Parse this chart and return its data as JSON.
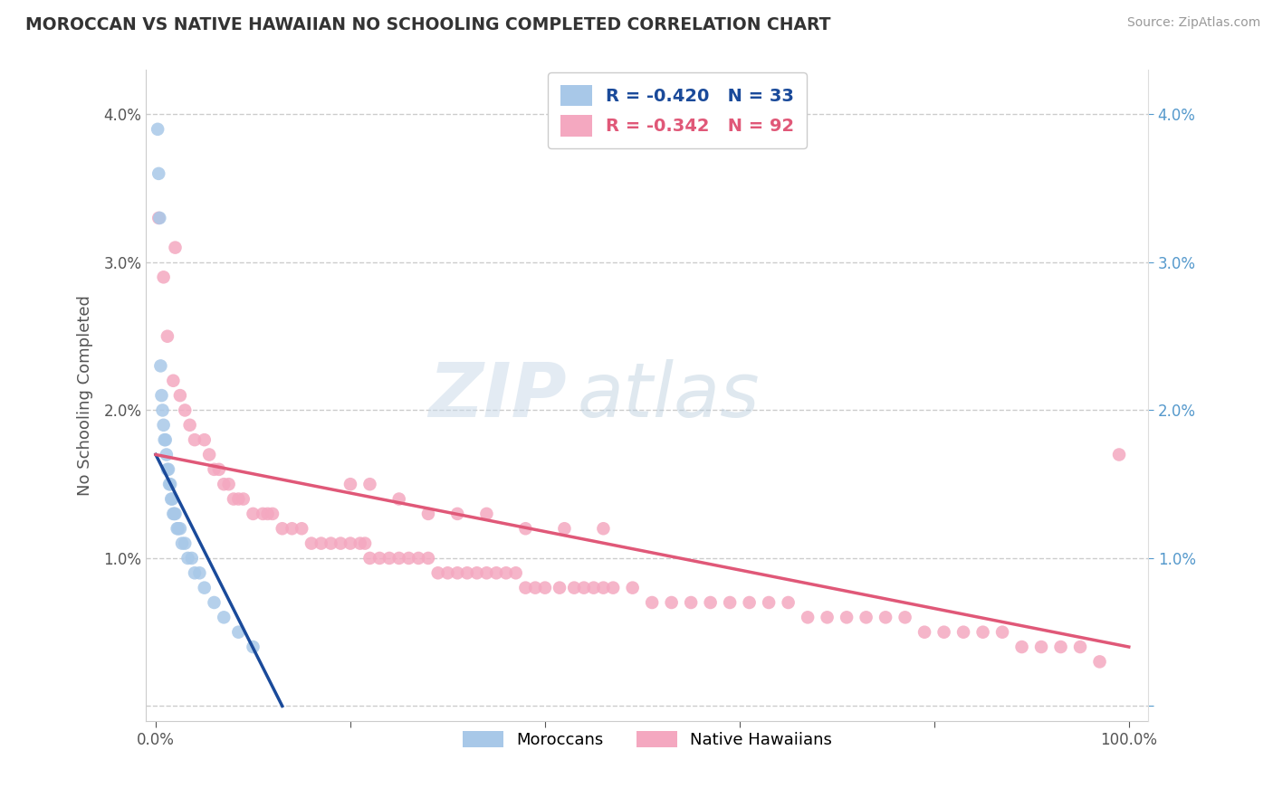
{
  "title": "MOROCCAN VS NATIVE HAWAIIAN NO SCHOOLING COMPLETED CORRELATION CHART",
  "source": "Source: ZipAtlas.com",
  "ylabel": "No Schooling Completed",
  "x_tick_positions": [
    0.0,
    0.2,
    0.4,
    0.6,
    0.8,
    1.0
  ],
  "x_tick_labels": [
    "0.0%",
    "",
    "",
    "",
    "",
    "100.0%"
  ],
  "y_tick_positions": [
    0.0,
    0.01,
    0.02,
    0.03,
    0.04
  ],
  "y_tick_labels_left": [
    "",
    "1.0%",
    "2.0%",
    "3.0%",
    "4.0%"
  ],
  "y_tick_labels_right": [
    "",
    "1.0%",
    "2.0%",
    "3.0%",
    "4.0%"
  ],
  "xlim": [
    -0.01,
    1.02
  ],
  "ylim": [
    -0.001,
    0.043
  ],
  "moroccan_R": -0.42,
  "moroccan_N": 33,
  "hawaiian_R": -0.342,
  "hawaiian_N": 92,
  "moroccan_color": "#a8c8e8",
  "moroccan_line_color": "#1a4a9a",
  "hawaiian_color": "#f4a8c0",
  "hawaiian_line_color": "#e05878",
  "legend_label_moroccan": "Moroccans",
  "legend_label_hawaiian": "Native Hawaiians",
  "watermark_zip": "ZIP",
  "watermark_atlas": "atlas",
  "background_color": "#ffffff",
  "grid_color": "#cccccc",
  "moroccan_x": [
    0.002,
    0.003,
    0.004,
    0.005,
    0.006,
    0.007,
    0.008,
    0.009,
    0.01,
    0.011,
    0.012,
    0.013,
    0.014,
    0.015,
    0.016,
    0.017,
    0.018,
    0.019,
    0.02,
    0.022,
    0.023,
    0.025,
    0.027,
    0.03,
    0.033,
    0.037,
    0.04,
    0.045,
    0.05,
    0.06,
    0.07,
    0.085,
    0.1
  ],
  "moroccan_y": [
    0.039,
    0.036,
    0.033,
    0.023,
    0.021,
    0.02,
    0.019,
    0.018,
    0.018,
    0.017,
    0.016,
    0.016,
    0.015,
    0.015,
    0.014,
    0.014,
    0.013,
    0.013,
    0.013,
    0.012,
    0.012,
    0.012,
    0.011,
    0.011,
    0.01,
    0.01,
    0.009,
    0.009,
    0.008,
    0.007,
    0.006,
    0.005,
    0.004
  ],
  "hawaiian_x": [
    0.003,
    0.008,
    0.012,
    0.018,
    0.02,
    0.025,
    0.03,
    0.035,
    0.04,
    0.05,
    0.055,
    0.06,
    0.065,
    0.07,
    0.075,
    0.08,
    0.085,
    0.09,
    0.1,
    0.11,
    0.115,
    0.12,
    0.13,
    0.14,
    0.15,
    0.16,
    0.17,
    0.18,
    0.19,
    0.2,
    0.21,
    0.215,
    0.22,
    0.23,
    0.24,
    0.25,
    0.26,
    0.27,
    0.28,
    0.29,
    0.3,
    0.31,
    0.32,
    0.33,
    0.34,
    0.35,
    0.36,
    0.37,
    0.38,
    0.39,
    0.4,
    0.415,
    0.43,
    0.44,
    0.45,
    0.46,
    0.47,
    0.49,
    0.51,
    0.53,
    0.55,
    0.57,
    0.59,
    0.61,
    0.63,
    0.65,
    0.67,
    0.69,
    0.71,
    0.73,
    0.75,
    0.77,
    0.79,
    0.81,
    0.83,
    0.85,
    0.87,
    0.89,
    0.91,
    0.93,
    0.95,
    0.97,
    0.99,
    0.2,
    0.22,
    0.25,
    0.28,
    0.31,
    0.34,
    0.38,
    0.42,
    0.46
  ],
  "hawaiian_y": [
    0.033,
    0.029,
    0.025,
    0.022,
    0.031,
    0.021,
    0.02,
    0.019,
    0.018,
    0.018,
    0.017,
    0.016,
    0.016,
    0.015,
    0.015,
    0.014,
    0.014,
    0.014,
    0.013,
    0.013,
    0.013,
    0.013,
    0.012,
    0.012,
    0.012,
    0.011,
    0.011,
    0.011,
    0.011,
    0.011,
    0.011,
    0.011,
    0.01,
    0.01,
    0.01,
    0.01,
    0.01,
    0.01,
    0.01,
    0.009,
    0.009,
    0.009,
    0.009,
    0.009,
    0.009,
    0.009,
    0.009,
    0.009,
    0.008,
    0.008,
    0.008,
    0.008,
    0.008,
    0.008,
    0.008,
    0.008,
    0.008,
    0.008,
    0.007,
    0.007,
    0.007,
    0.007,
    0.007,
    0.007,
    0.007,
    0.007,
    0.006,
    0.006,
    0.006,
    0.006,
    0.006,
    0.006,
    0.005,
    0.005,
    0.005,
    0.005,
    0.005,
    0.004,
    0.004,
    0.004,
    0.004,
    0.003,
    0.017,
    0.015,
    0.015,
    0.014,
    0.013,
    0.013,
    0.013,
    0.012,
    0.012,
    0.012
  ],
  "moroccan_line_x": [
    0.0,
    0.13
  ],
  "moroccan_line_y": [
    0.017,
    0.0
  ],
  "hawaiian_line_x": [
    0.0,
    1.0
  ],
  "hawaiian_line_y": [
    0.017,
    0.004
  ]
}
